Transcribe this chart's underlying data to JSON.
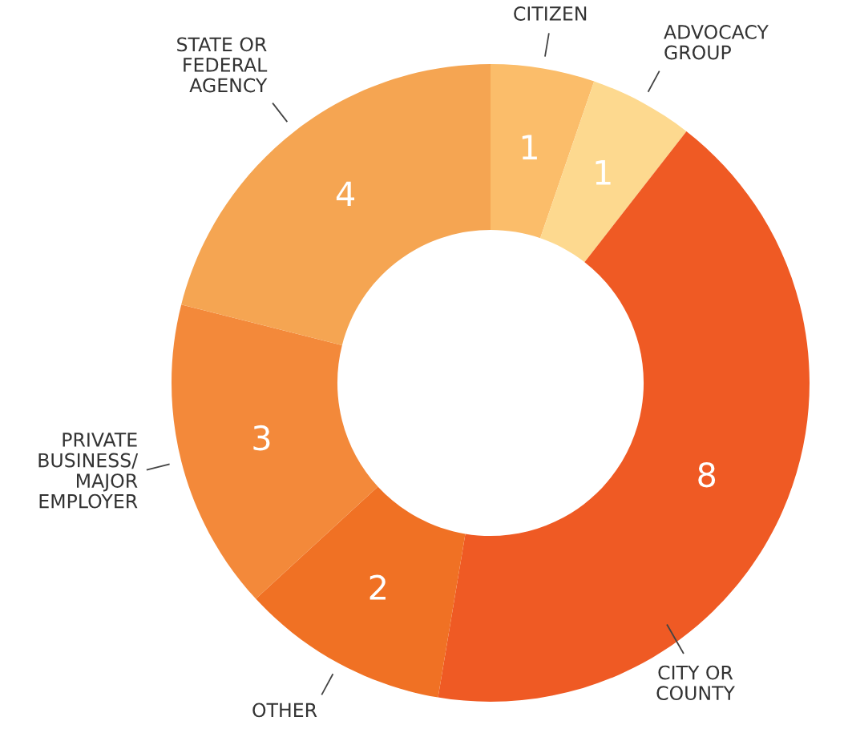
{
  "chart_data": {
    "type": "donut",
    "categories": [
      "CITIZEN",
      "ADVOCACY\nGROUP",
      "CITY OR\nCOUNTY",
      "OTHER",
      "PRIVATE\nBUSINESS/\nMAJOR\nEMPLOYER",
      "STATE OR\nFEDERAL\nAGENCY"
    ],
    "values": [
      1,
      1,
      8,
      2,
      3,
      4
    ],
    "colors": [
      "#fbbd6a",
      "#fdd98f",
      "#ef5a24",
      "#f07124",
      "#f3893a",
      "#f5a552"
    ],
    "data_labels": true
  }
}
